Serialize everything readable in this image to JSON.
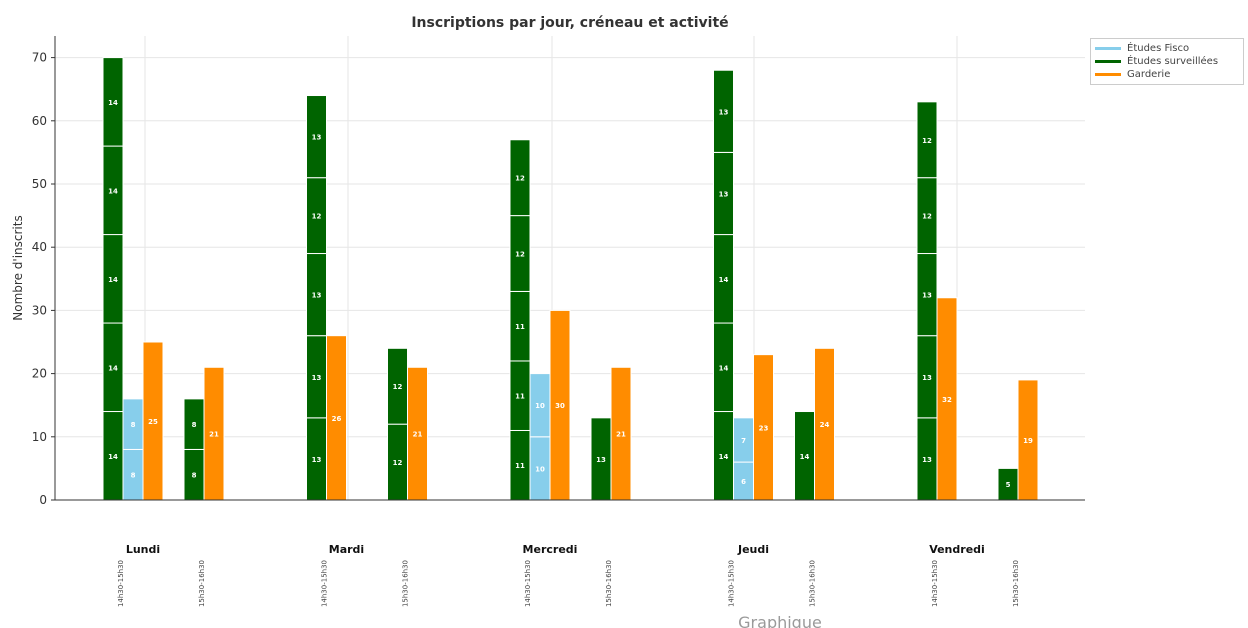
{
  "colors": {
    "etudes_fisco": "#87ceeb",
    "etudes_surveillees": "#006400",
    "garderie": "#ff8c00"
  },
  "chart_data": {
    "type": "bar",
    "stacked": true,
    "title": "Inscriptions par jour, créneau et activité",
    "ylabel": "Nombre d'inscrits",
    "xlabel": "",
    "ylim": [
      0,
      73
    ],
    "yticks": [
      0,
      10,
      20,
      30,
      40,
      50,
      60,
      70
    ],
    "grid": true,
    "legend_position": "top-right",
    "legend": [
      "Études Fisco",
      "Études surveillées",
      "Garderie"
    ],
    "footer_text": "Graphique",
    "days": [
      {
        "label": "Lundi",
        "slots": [
          {
            "label": "14h30-15h30",
            "bars": [
              {
                "activity": "Études surveillées",
                "segments": [
                  14,
                  14,
                  14,
                  14,
                  14
                ]
              },
              {
                "activity": "Études Fisco",
                "segments": [
                  8,
                  8
                ]
              },
              {
                "activity": "Garderie",
                "segments": [
                  25
                ]
              }
            ]
          },
          {
            "label": "15h30-16h30",
            "bars": [
              {
                "activity": "Études surveillées",
                "segments": [
                  8,
                  8
                ]
              },
              {
                "activity": "Garderie",
                "segments": [
                  21
                ]
              }
            ]
          }
        ]
      },
      {
        "label": "Mardi",
        "slots": [
          {
            "label": "14h30-15h30",
            "bars": [
              {
                "activity": "Études surveillées",
                "segments": [
                  13,
                  13,
                  13,
                  12,
                  13
                ]
              },
              {
                "activity": "Garderie",
                "segments": [
                  26
                ]
              }
            ]
          },
          {
            "label": "15h30-16h30",
            "bars": [
              {
                "activity": "Études surveillées",
                "segments": [
                  12,
                  12
                ]
              },
              {
                "activity": "Garderie",
                "segments": [
                  21
                ]
              }
            ]
          }
        ]
      },
      {
        "label": "Mercredi",
        "slots": [
          {
            "label": "14h30-15h30",
            "bars": [
              {
                "activity": "Études surveillées",
                "segments": [
                  11,
                  11,
                  11,
                  12,
                  12
                ]
              },
              {
                "activity": "Études Fisco",
                "segments": [
                  10,
                  10
                ]
              },
              {
                "activity": "Garderie",
                "segments": [
                  30
                ]
              }
            ]
          },
          {
            "label": "15h30-16h30",
            "bars": [
              {
                "activity": "Études surveillées",
                "segments": [
                  13
                ]
              },
              {
                "activity": "Garderie",
                "segments": [
                  21
                ]
              }
            ]
          }
        ]
      },
      {
        "label": "Jeudi",
        "slots": [
          {
            "label": "14h30-15h30",
            "bars": [
              {
                "activity": "Études surveillées",
                "segments": [
                  14,
                  14,
                  14,
                  13,
                  13
                ]
              },
              {
                "activity": "Études Fisco",
                "segments": [
                  6,
                  7
                ]
              },
              {
                "activity": "Garderie",
                "segments": [
                  23
                ]
              }
            ]
          },
          {
            "label": "15h30-16h30",
            "bars": [
              {
                "activity": "Études surveillées",
                "segments": [
                  14
                ]
              },
              {
                "activity": "Garderie",
                "segments": [
                  24
                ]
              }
            ]
          }
        ]
      },
      {
        "label": "Vendredi",
        "slots": [
          {
            "label": "14h30-15h30",
            "bars": [
              {
                "activity": "Études surveillées",
                "segments": [
                  13,
                  13,
                  13,
                  12,
                  12
                ]
              },
              {
                "activity": "Garderie",
                "segments": [
                  32
                ]
              }
            ]
          },
          {
            "label": "15h30-16h30",
            "bars": [
              {
                "activity": "Études surveillées",
                "segments": [
                  5
                ]
              },
              {
                "activity": "Garderie",
                "segments": [
                  19
                ]
              }
            ]
          }
        ]
      }
    ]
  }
}
